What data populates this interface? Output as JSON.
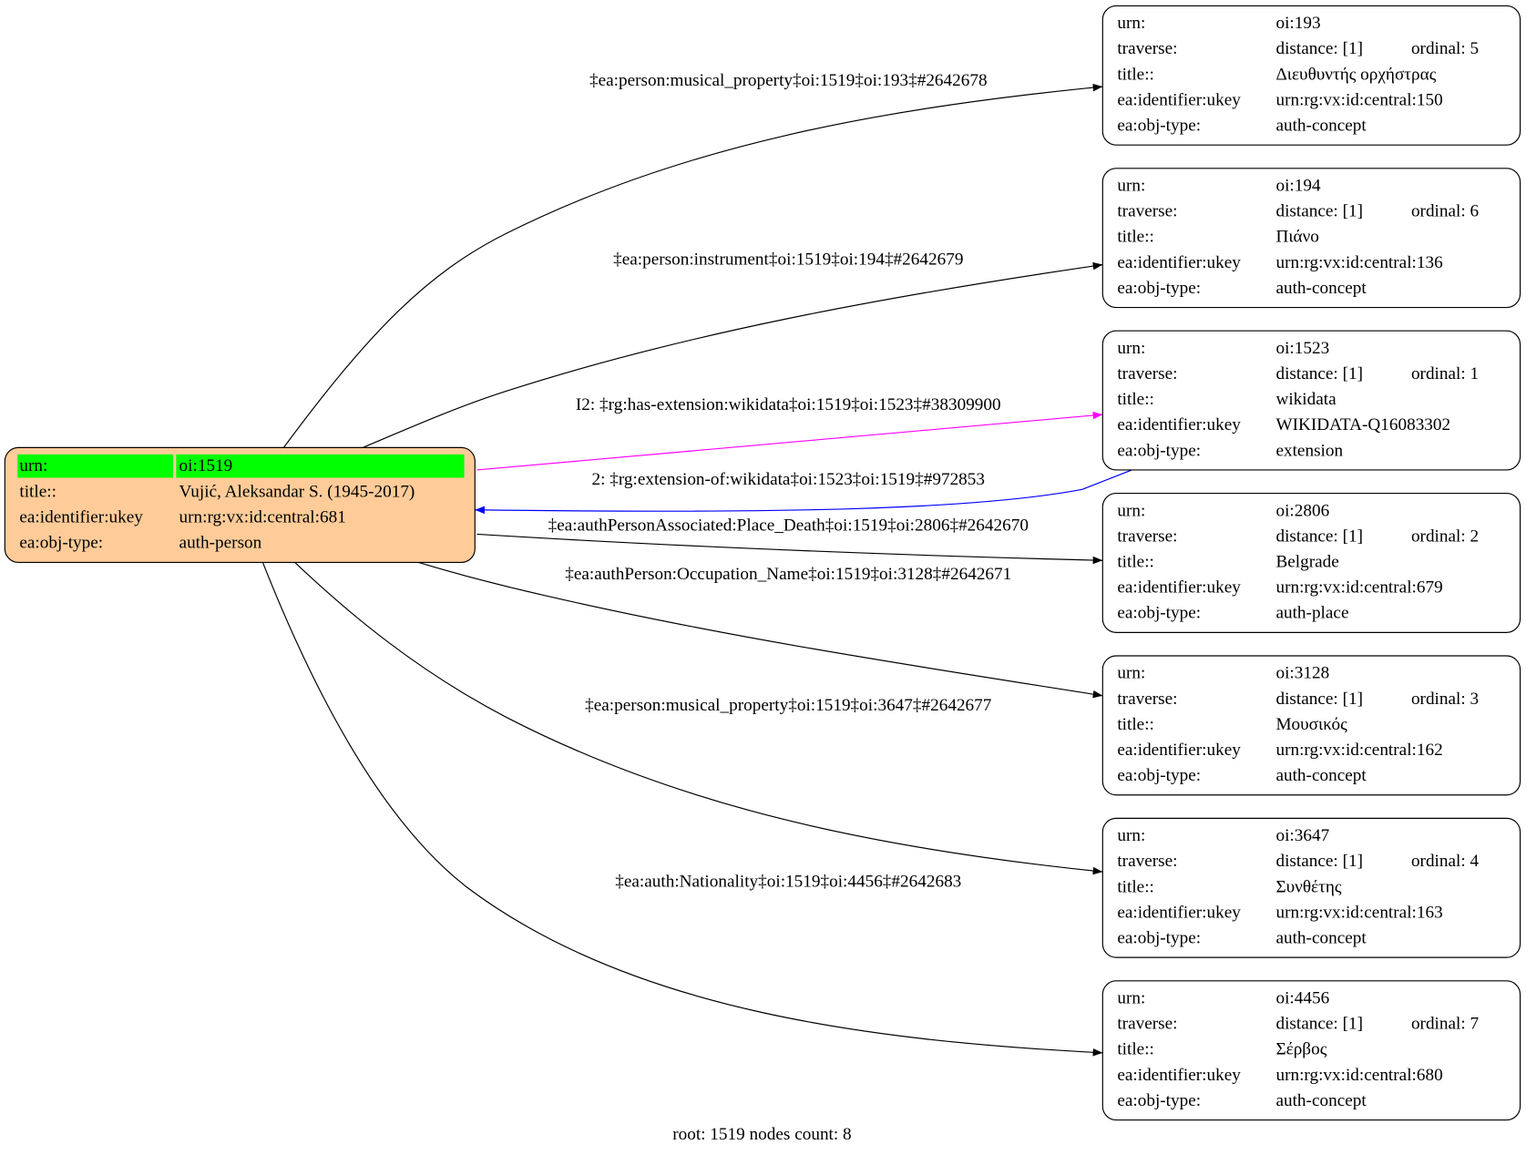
{
  "colors": {
    "root_fill": "#ffcc99",
    "root_highlight": "#00ff00",
    "edge_default": "#000000",
    "edge_extension": "#ff00ff",
    "edge_back": "#0000ff"
  },
  "root": {
    "rows": [
      {
        "label": "urn:",
        "value": "oi:1519"
      },
      {
        "label": "title::",
        "value": "Vujić, Aleksandar S. (1945-2017)"
      },
      {
        "label": "ea:identifier:ukey",
        "value": "urn:rg:vx:id:central:681"
      },
      {
        "label": "ea:obj-type:",
        "value": "auth-person"
      }
    ]
  },
  "nodes": [
    {
      "urn": "oi:193",
      "distance": "distance: [1]",
      "ordinal": "ordinal: 5",
      "title": "Διευθυντής ορχήστρας",
      "ukey": "urn:rg:vx:id:central:150",
      "type": "auth-concept"
    },
    {
      "urn": "oi:194",
      "distance": "distance: [1]",
      "ordinal": "ordinal: 6",
      "title": "Πιάνο",
      "ukey": "urn:rg:vx:id:central:136",
      "type": "auth-concept"
    },
    {
      "urn": "oi:1523",
      "distance": "distance: [1]",
      "ordinal": "ordinal: 1",
      "title": "wikidata",
      "ukey": "WIKIDATA-Q16083302",
      "type": "extension"
    },
    {
      "urn": "oi:2806",
      "distance": "distance: [1]",
      "ordinal": "ordinal: 2",
      "title": "Belgrade",
      "ukey": "urn:rg:vx:id:central:679",
      "type": "auth-place"
    },
    {
      "urn": "oi:3128",
      "distance": "distance: [1]",
      "ordinal": "ordinal: 3",
      "title": "Μουσικός",
      "ukey": "urn:rg:vx:id:central:162",
      "type": "auth-concept"
    },
    {
      "urn": "oi:3647",
      "distance": "distance: [1]",
      "ordinal": "ordinal: 4",
      "title": "Συνθέτης",
      "ukey": "urn:rg:vx:id:central:163",
      "type": "auth-concept"
    },
    {
      "urn": "oi:4456",
      "distance": "distance: [1]",
      "ordinal": "ordinal: 7",
      "title": "Σέρβος",
      "ukey": "urn:rg:vx:id:central:680",
      "type": "auth-concept"
    }
  ],
  "row_labels": {
    "urn": "urn:",
    "traverse": "traverse:",
    "title": "title::",
    "ukey": "ea:identifier:ukey",
    "type": "ea:obj-type:"
  },
  "edges": [
    {
      "label": "‡ea:person:musical_property‡oi:1519‡oi:193‡#2642678",
      "kind": "default"
    },
    {
      "label": "‡ea:person:instrument‡oi:1519‡oi:194‡#2642679",
      "kind": "default"
    },
    {
      "label": "I2: ‡rg:has-extension:wikidata‡oi:1519‡oi:1523‡#38309900",
      "kind": "extension"
    },
    {
      "label": "2: ‡rg:extension-of:wikidata‡oi:1523‡oi:1519‡#972853",
      "kind": "back"
    },
    {
      "label": "‡ea:authPersonAssociated:Place_Death‡oi:1519‡oi:2806‡#2642670",
      "kind": "default"
    },
    {
      "label": "‡ea:authPerson:Occupation_Name‡oi:1519‡oi:3128‡#2642671",
      "kind": "default"
    },
    {
      "label": "‡ea:person:musical_property‡oi:1519‡oi:3647‡#2642677",
      "kind": "default"
    },
    {
      "label": "‡ea:auth:Nationality‡oi:1519‡oi:4456‡#2642683",
      "kind": "default"
    }
  ],
  "footer": "root: 1519 nodes count: 8"
}
